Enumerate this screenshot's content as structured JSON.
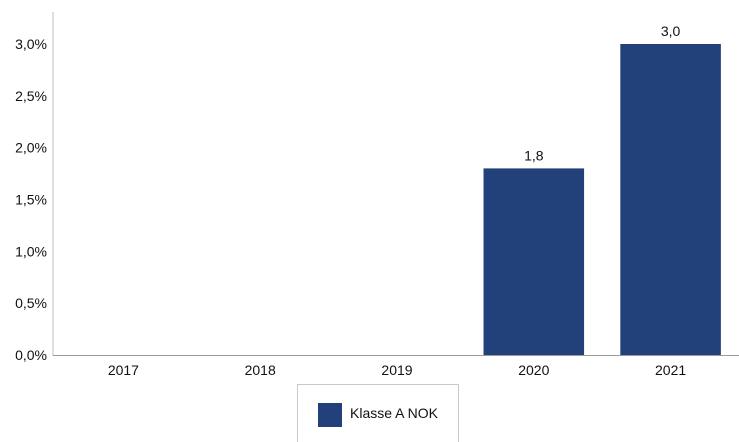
{
  "chart_data": {
    "type": "bar",
    "categories": [
      "2017",
      "2018",
      "2019",
      "2020",
      "2021"
    ],
    "series": [
      {
        "name": "Klasse A NOK",
        "values": [
          0,
          0,
          0,
          1.8,
          3.0
        ],
        "color": "#22417A"
      }
    ],
    "data_labels": [
      "",
      "",
      "",
      "1,8",
      "3,0"
    ],
    "yticks": [
      "0,0%",
      "0,5%",
      "1,0%",
      "1,5%",
      "2,0%",
      "2,5%",
      "3,0%"
    ],
    "ylim": [
      0,
      3.0
    ],
    "grid": false,
    "legend_position": "bottom-center",
    "title": "",
    "xlabel": "",
    "ylabel": ""
  }
}
